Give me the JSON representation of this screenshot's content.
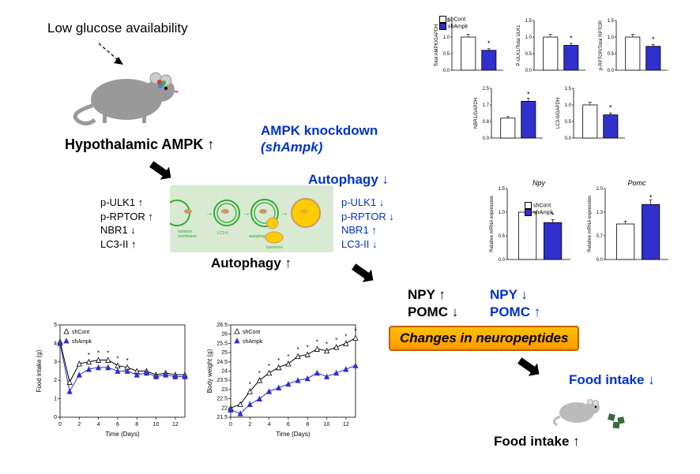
{
  "colors": {
    "blue": "#0033cc",
    "black": "#000000",
    "bar_open": "#ffffff",
    "bar_fill": "#3030cc",
    "grid": "#d0d0d0",
    "autophagy_bg": "#d9ead3",
    "mouse_body": "#999999",
    "mouse_ear": "#cccccc",
    "yellow1": "#ffc000",
    "yellow2": "#ff9900"
  },
  "top_label": "Low glucose availability",
  "hypo_label": "Hypothalamic AMPK ↑",
  "knockdown_line1": "AMPK knockdown",
  "knockdown_line2": "(shAmpk)",
  "autophagy_down": "Autophagy ↓",
  "autophagy_up": "Autophagy ↑",
  "left_markers": [
    "p-ULK1 ↑",
    "p-RPTOR ↑",
    "NBR1 ↓",
    "LC3-II ↑"
  ],
  "right_markers": [
    "p-ULK1 ↓",
    "p-RPTOR ↓",
    "NBR1 ↑",
    "LC3-II ↓"
  ],
  "neuro_black": [
    "NPY ↑",
    "POMC ↓"
  ],
  "neuro_blue": [
    "NPY ↓",
    "POMC ↑"
  ],
  "changes_label": "Changes in neuropeptides",
  "food_blue": "Food intake ↓",
  "food_black": "Food intake ↑",
  "legend": {
    "cont": "shCont",
    "ampk": "shAmpk"
  },
  "bar_charts_top": [
    {
      "yaxis": "Total AMPK/GAPDH",
      "ylim": [
        0,
        1.5
      ],
      "cont": 1.0,
      "ampk": 0.6,
      "sig": "ampk"
    },
    {
      "yaxis": "P-ULK1/Total ULK1",
      "ylim": [
        0,
        1.5
      ],
      "cont": 1.0,
      "ampk": 0.75,
      "sig": "ampk"
    },
    {
      "yaxis": "p-RPTOR/Total RPTOR",
      "ylim": [
        0,
        1.5
      ],
      "cont": 1.0,
      "ampk": 0.72,
      "sig": "ampk"
    },
    {
      "yaxis": "NBR1/GAPDH",
      "ylim": [
        0,
        2.5
      ],
      "cont": 1.0,
      "ampk": 1.85,
      "sig": "ampk"
    },
    {
      "yaxis": "LC3-II/GAPDH",
      "ylim": [
        0,
        1.5
      ],
      "cont": 1.0,
      "ampk": 0.7,
      "sig": "ampk"
    }
  ],
  "bar_charts_mrna": [
    {
      "title": "Npy",
      "yaxis": "Relative mRNA expression",
      "ylim": [
        0,
        1.5
      ],
      "cont": 1.0,
      "ampk": 0.78,
      "sig": "ampk"
    },
    {
      "title": "Pomc",
      "yaxis": "Relative mRNA expression",
      "ylim": [
        0,
        2.0
      ],
      "cont": 1.0,
      "ampk": 1.55,
      "sig": "ampk"
    }
  ],
  "line_charts": [
    {
      "ylabel": "Food intake (g)",
      "xlabel": "Time (Days)",
      "ylim": [
        0,
        5
      ],
      "yticks": [
        0,
        1,
        2,
        3,
        4,
        5
      ],
      "xlim": [
        0,
        13
      ],
      "cont": [
        4.1,
        1.9,
        2.9,
        3.0,
        3.1,
        3.1,
        2.8,
        2.7,
        2.5,
        2.5,
        2.3,
        2.4,
        2.3,
        2.3
      ],
      "ampk": [
        4.0,
        1.4,
        2.3,
        2.6,
        2.7,
        2.7,
        2.5,
        2.5,
        2.3,
        2.4,
        2.2,
        2.3,
        2.2,
        2.2
      ],
      "sig_idx": [
        3,
        4,
        5,
        6,
        7
      ]
    },
    {
      "ylabel": "Body weight (g)",
      "xlabel": "Time (Days)",
      "ylim": [
        21.5,
        26.5
      ],
      "yticks": [
        21.5,
        22.0,
        22.5,
        23.0,
        23.5,
        24.0,
        24.5,
        25.0,
        25.5,
        26.0,
        26.5
      ],
      "xlim": [
        0,
        13
      ],
      "cont": [
        22.0,
        22.2,
        22.9,
        23.5,
        23.9,
        24.2,
        24.4,
        24.8,
        24.9,
        25.2,
        25.1,
        25.3,
        25.5,
        25.8
      ],
      "ampk": [
        21.9,
        21.7,
        22.2,
        22.5,
        22.9,
        23.1,
        23.3,
        23.5,
        23.6,
        23.9,
        23.7,
        23.9,
        24.1,
        24.3
      ],
      "sig_idx": [
        2,
        3,
        4,
        5,
        6,
        7,
        8,
        9,
        10,
        11,
        12,
        13
      ]
    }
  ],
  "chart_style": {
    "cont_marker": "triangle-open",
    "ampk_marker": "triangle-fill",
    "line_width": 1,
    "err_cap": 2
  }
}
